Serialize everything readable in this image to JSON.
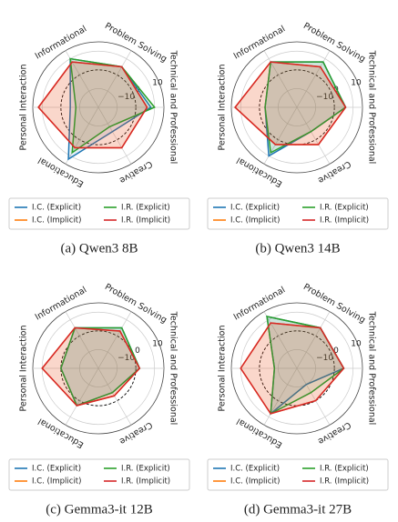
{
  "chart_data": [
    {
      "type": "radar",
      "caption": "(a) Qwen3 8B",
      "categories": [
        "Informational",
        "Problem Solving",
        "Technical and Professional",
        "Creative",
        "Educational",
        "Personal Interaction"
      ],
      "rlim": [
        -20,
        15
      ],
      "rticks": [
        {
          "value": -10,
          "label": "−10"
        },
        0,
        10
      ],
      "series": [
        {
          "name": "I.C. (Explicit)",
          "color": "#1f77b4",
          "values": [
            10,
            5,
            8,
            -5,
            12,
            -5
          ]
        },
        {
          "name": "I.C. (Implicit)",
          "color": "#ff7f0e",
          "values": [
            8,
            5,
            6,
            5,
            5,
            12
          ]
        },
        {
          "name": "I.R. (Explicit)",
          "color": "#2ca02c",
          "values": [
            10,
            5,
            10,
            -8,
            8,
            -8
          ]
        },
        {
          "name": "I.R. (Implicit)",
          "color": "#d62728",
          "values": [
            8,
            5,
            6,
            5,
            5,
            12
          ]
        }
      ]
    },
    {
      "type": "radar",
      "caption": "(b) Qwen3 14B",
      "categories": [
        "Informational",
        "Problem Solving",
        "Technical and Professional",
        "Creative",
        "Educational",
        "Personal Interaction"
      ],
      "rlim": [
        -20,
        15
      ],
      "rticks": [
        {
          "value": -10,
          "label": "−10"
        },
        0,
        10
      ],
      "series": [
        {
          "name": "I.C. (Explicit)",
          "color": "#1f77b4",
          "values": [
            8,
            8,
            6,
            -5,
            10,
            -3
          ]
        },
        {
          "name": "I.C. (Implicit)",
          "color": "#ff7f0e",
          "values": [
            8,
            5,
            6,
            3,
            3,
            13
          ]
        },
        {
          "name": "I.R. (Explicit)",
          "color": "#2ca02c",
          "values": [
            8,
            8,
            6,
            -5,
            8,
            -3
          ]
        },
        {
          "name": "I.R. (Implicit)",
          "color": "#d62728",
          "values": [
            8,
            5,
            6,
            3,
            3,
            13
          ]
        }
      ]
    },
    {
      "type": "radar",
      "caption": "(c) Gemma3-it 12B",
      "categories": [
        "Informational",
        "Problem Solving",
        "Technical and Professional",
        "Creative",
        "Educational",
        "Personal Interaction"
      ],
      "rlim": [
        -20,
        15
      ],
      "rticks": [
        {
          "value": -10,
          "label": "−10"
        },
        0,
        10
      ],
      "series": [
        {
          "name": "I.C. (Explicit)",
          "color": "#1f77b4",
          "values": [
            5,
            5,
            2,
            -5,
            3,
            0
          ]
        },
        {
          "name": "I.C. (Implicit)",
          "color": "#ff7f0e",
          "values": [
            5,
            3,
            2,
            -3,
            3,
            10
          ]
        },
        {
          "name": "I.R. (Explicit)",
          "color": "#2ca02c",
          "values": [
            5,
            5,
            2,
            -5,
            3,
            0
          ]
        },
        {
          "name": "I.R. (Implicit)",
          "color": "#d62728",
          "values": [
            5,
            3,
            2,
            -3,
            3,
            10
          ]
        }
      ]
    },
    {
      "type": "radar",
      "caption": "(d) Gemma3-it 27B",
      "categories": [
        "Informational",
        "Problem Solving",
        "Technical and Professional",
        "Creative",
        "Educational",
        "Personal Interaction"
      ],
      "rlim": [
        -20,
        15
      ],
      "rticks": [
        {
          "value": -10,
          "label": "−10"
        },
        0,
        10
      ],
      "series": [
        {
          "name": "I.C. (Explicit)",
          "color": "#1f77b4",
          "values": [
            12,
            5,
            5,
            -10,
            8,
            -8
          ]
        },
        {
          "name": "I.C. (Implicit)",
          "color": "#ff7f0e",
          "values": [
            8,
            5,
            5,
            0,
            8,
            10
          ]
        },
        {
          "name": "I.R. (Explicit)",
          "color": "#2ca02c",
          "values": [
            12,
            5,
            5,
            -5,
            8,
            -8
          ]
        },
        {
          "name": "I.R. (Implicit)",
          "color": "#d62728",
          "values": [
            8,
            5,
            5,
            0,
            8,
            10
          ]
        }
      ]
    }
  ]
}
